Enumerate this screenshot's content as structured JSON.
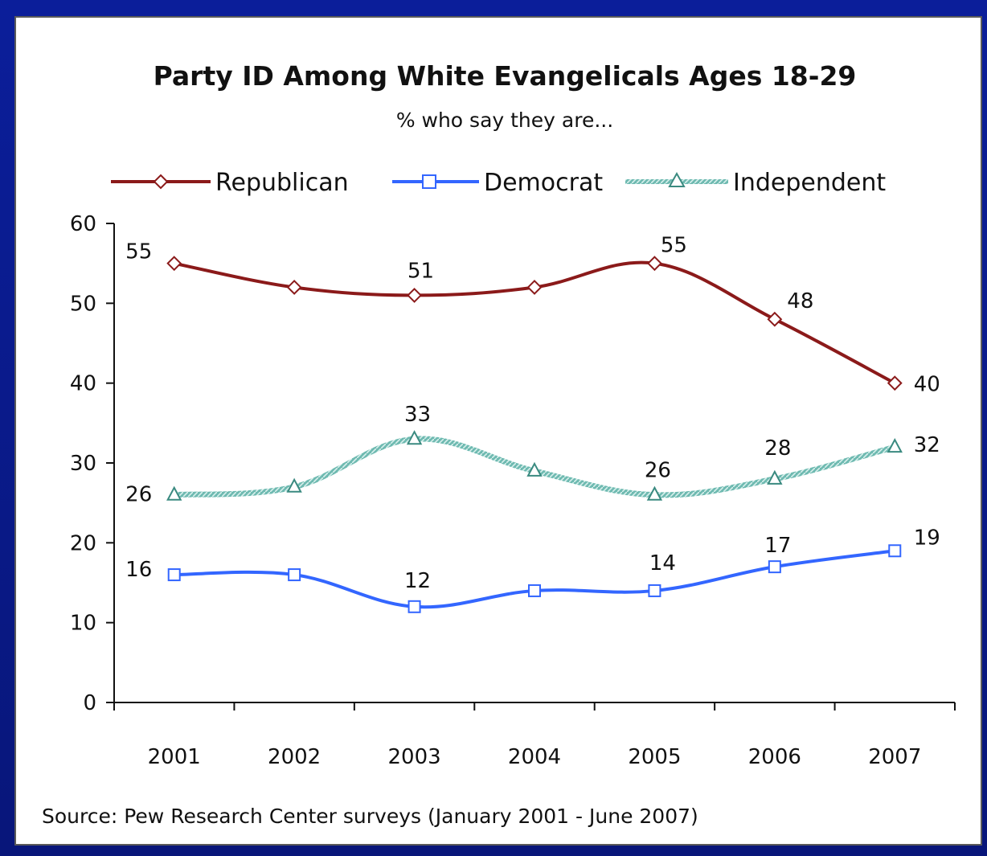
{
  "chart_data": {
    "type": "line",
    "title": "Party ID Among White Evangelicals Ages 18-29",
    "subtitle": "% who say they are...",
    "categories": [
      "2001",
      "2002",
      "2003",
      "2004",
      "2005",
      "2006",
      "2007"
    ],
    "series": [
      {
        "name": "Republican",
        "values": [
          55,
          52,
          51,
          52,
          55,
          48,
          40
        ],
        "color": "#8b1a1a",
        "marker": "diamond",
        "labels": [
          "55",
          null,
          "51",
          null,
          "55",
          "48",
          "40"
        ]
      },
      {
        "name": "Democrat",
        "values": [
          16,
          16,
          12,
          14,
          14,
          17,
          19
        ],
        "color": "#3366ff",
        "marker": "square",
        "labels": [
          "16",
          null,
          "12",
          null,
          "14",
          "17",
          "19"
        ]
      },
      {
        "name": "Independent",
        "values": [
          26,
          27,
          33,
          29,
          26,
          28,
          32
        ],
        "color": "#5aa9a0",
        "marker": "triangle",
        "labels": [
          "26",
          null,
          "33",
          null,
          "26",
          "28",
          "32"
        ]
      }
    ],
    "ylim": [
      0,
      60
    ],
    "yticks": [
      "0",
      "10",
      "20",
      "30",
      "40",
      "50",
      "60"
    ],
    "xlabel": "",
    "ylabel": "",
    "grid": false,
    "legend": "top",
    "source": "Source: Pew Research Center surveys (January 2001 - June 2007)"
  }
}
